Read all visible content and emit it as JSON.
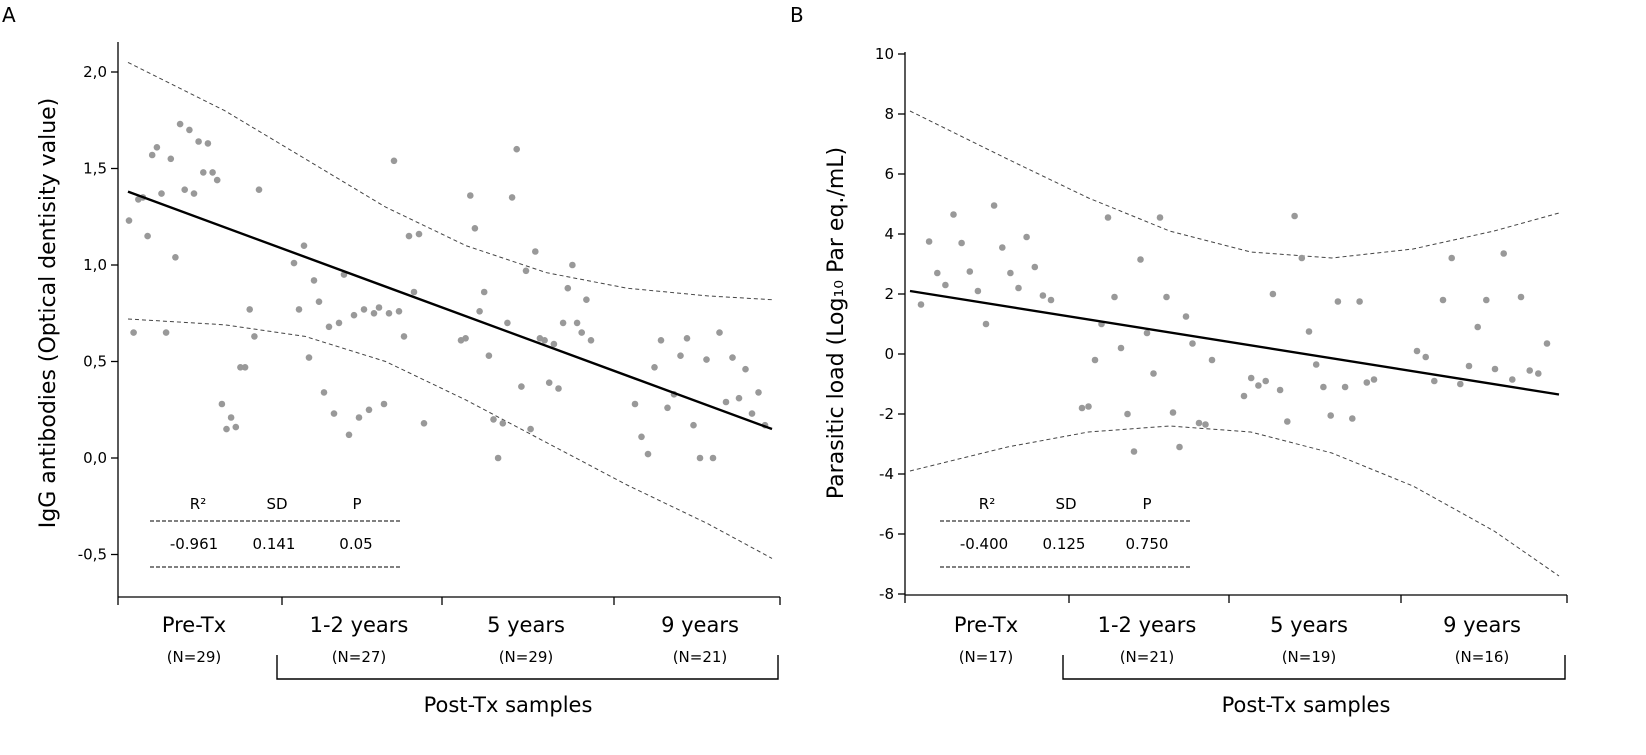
{
  "chart_data": [
    {
      "panel": "A",
      "type": "scatter",
      "ylabel": "IgG antibodies (Optical dentisity value)",
      "ylim": [
        -0.65,
        2.1
      ],
      "yticks": [
        -0.5,
        0.0,
        0.5,
        1.0,
        1.5,
        2.0
      ],
      "ytick_labels": [
        "-0,5",
        "0,0",
        "0,5",
        "1,0",
        "1,5",
        "2,0"
      ],
      "categories": [
        "Pre-Tx",
        "1-2 years",
        "5 years",
        "9 years"
      ],
      "n_labels": [
        "(N=29)",
        "(N=27)",
        "(N=29)",
        "(N=21)"
      ],
      "group_label": "Post-Tx samples",
      "fit_line": {
        "x": [
          0.4,
          4.4
        ],
        "y": [
          1.38,
          0.15
        ]
      },
      "ci_upper": {
        "x": [
          0.4,
          1.0,
          1.5,
          2.0,
          2.5,
          3.0,
          3.5,
          4.0,
          4.4
        ],
        "y": [
          2.05,
          1.8,
          1.55,
          1.3,
          1.1,
          0.96,
          0.88,
          0.84,
          0.82
        ]
      },
      "ci_lower": {
        "x": [
          0.4,
          1.0,
          1.5,
          2.0,
          2.5,
          3.0,
          3.5,
          4.0,
          4.4
        ],
        "y": [
          0.72,
          0.69,
          0.63,
          0.5,
          0.3,
          0.08,
          -0.14,
          -0.34,
          -0.52
        ]
      },
      "points": [
        {
          "group": 1,
          "values": [
            1.23,
            0.65,
            1.34,
            1.35,
            1.15,
            1.57,
            1.61,
            1.37,
            0.65,
            1.55,
            1.04,
            1.73,
            1.39,
            1.7,
            1.37,
            1.64,
            1.48,
            1.63,
            1.48,
            1.44,
            0.28,
            0.15,
            0.21,
            0.16,
            0.47,
            0.47,
            0.77,
            0.63,
            1.39
          ]
        },
        {
          "group": 2,
          "values": [
            1.01,
            0.77,
            1.1,
            0.52,
            0.92,
            0.81,
            0.34,
            0.68,
            0.23,
            0.7,
            0.95,
            0.12,
            0.74,
            0.21,
            0.77,
            0.25,
            0.75,
            0.78,
            0.28,
            0.75,
            1.54,
            0.76,
            0.63,
            1.15,
            0.86,
            1.16,
            0.18
          ]
        },
        {
          "group": 3,
          "values": [
            0.61,
            0.62,
            1.36,
            1.19,
            0.76,
            0.86,
            0.53,
            0.2,
            0.0,
            0.18,
            0.7,
            1.35,
            1.6,
            0.37,
            0.97,
            0.15,
            1.07,
            0.62,
            0.61,
            0.39,
            0.59,
            0.36,
            0.7,
            0.88,
            1.0,
            0.7,
            0.65,
            0.82,
            0.61
          ]
        },
        {
          "group": 4,
          "values": [
            0.28,
            0.11,
            0.02,
            0.47,
            0.61,
            0.26,
            0.33,
            0.53,
            0.62,
            0.17,
            0.0,
            0.51,
            0.0,
            0.65,
            0.29,
            0.52,
            0.31,
            0.46,
            0.23,
            0.34,
            0.17
          ]
        }
      ],
      "stats": {
        "headers": [
          "R²",
          "SD",
          "P"
        ],
        "values": [
          "-0.961",
          "0.141",
          "0.05"
        ]
      }
    },
    {
      "panel": "B",
      "type": "scatter",
      "ylabel": "Parasitic load (Log₁₀ Par eq./mL)",
      "ylim": [
        -8,
        10
      ],
      "yticks": [
        -8,
        -6,
        -4,
        -2,
        0,
        2,
        4,
        6,
        8,
        10
      ],
      "ytick_labels": [
        "-8",
        "-6",
        "-4",
        "-2",
        "0",
        "2",
        "4",
        "6",
        "8",
        "10"
      ],
      "categories": [
        "Pre-Tx",
        "1-2 years",
        "5 years",
        "9 years"
      ],
      "n_labels": [
        "(N=17)",
        "(N=21)",
        "(N=19)",
        "(N=16)"
      ],
      "group_label": "Post-Tx samples",
      "fit_line": {
        "x": [
          0.4,
          4.4
        ],
        "y": [
          2.1,
          -1.35
        ]
      },
      "ci_upper": {
        "x": [
          0.4,
          1.0,
          1.5,
          2.0,
          2.5,
          3.0,
          3.5,
          4.0,
          4.4
        ],
        "y": [
          8.1,
          6.5,
          5.2,
          4.1,
          3.4,
          3.2,
          3.5,
          4.1,
          4.7
        ]
      },
      "ci_lower": {
        "x": [
          0.4,
          1.0,
          1.5,
          2.0,
          2.5,
          3.0,
          3.5,
          4.0,
          4.4
        ],
        "y": [
          -3.9,
          -3.1,
          -2.6,
          -2.4,
          -2.6,
          -3.3,
          -4.4,
          -5.9,
          -7.4
        ]
      },
      "points": [
        {
          "group": 1,
          "values": [
            1.65,
            3.75,
            2.7,
            2.3,
            4.65,
            3.7,
            2.75,
            2.1,
            1.0,
            4.95,
            3.55,
            2.7,
            2.2,
            3.9,
            2.9,
            1.95,
            1.8
          ]
        },
        {
          "group": 2,
          "values": [
            -1.8,
            -1.75,
            -0.2,
            1.0,
            4.55,
            1.9,
            0.2,
            -2.0,
            -3.25,
            3.15,
            0.7,
            -0.65,
            4.55,
            1.9,
            -1.95,
            -3.1,
            1.25,
            0.35,
            -2.3,
            -2.35,
            -0.2
          ]
        },
        {
          "group": 3,
          "values": [
            -1.4,
            -0.8,
            -1.05,
            -0.9,
            2.0,
            -1.2,
            -2.25,
            4.6,
            3.2,
            0.75,
            -0.35,
            -1.1,
            -2.05,
            1.75,
            -1.1,
            -2.15,
            1.75,
            -0.95,
            -0.85
          ]
        },
        {
          "group": 4,
          "values": [
            0.1,
            -0.1,
            -0.9,
            1.8,
            3.2,
            -1.0,
            -0.4,
            0.9,
            1.8,
            -0.5,
            3.35,
            -0.85,
            1.9,
            -0.55,
            -0.65,
            0.35
          ]
        }
      ],
      "stats": {
        "headers": [
          "R²",
          "SD",
          "P"
        ],
        "values": [
          "-0.400",
          "0.125",
          "0.750"
        ]
      }
    }
  ]
}
